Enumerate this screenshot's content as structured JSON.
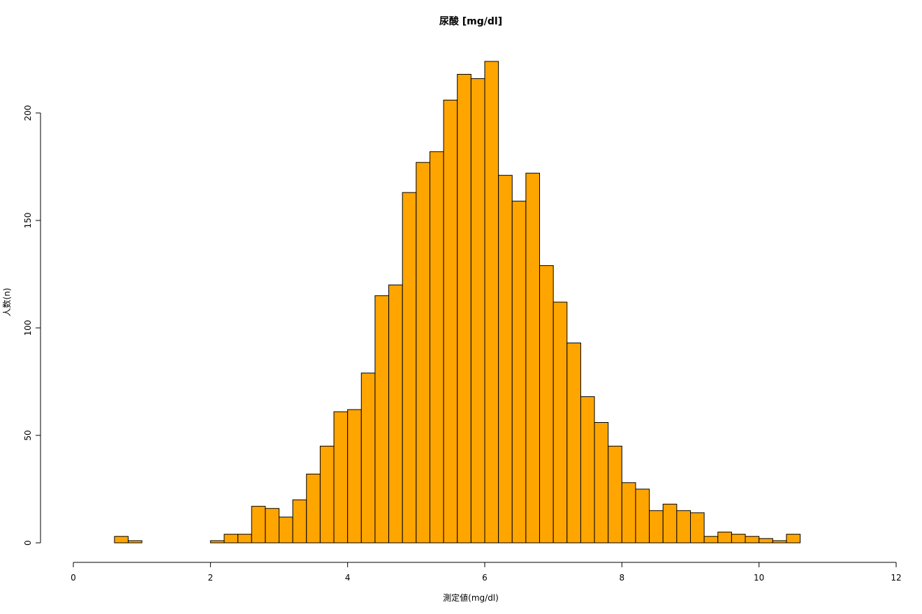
{
  "chart_data": {
    "type": "histogram",
    "title": "尿酸 [mg/dl]",
    "x_label": "測定値(mg/dl)",
    "y_label": "人数(n)",
    "bins": [
      0.6,
      0.8,
      1,
      1.2,
      1.4,
      1.6,
      1.8,
      2,
      2.2,
      2.4,
      2.6,
      2.8,
      3,
      3.2,
      3.4,
      3.6,
      3.8,
      4,
      4.2,
      4.4,
      4.6,
      4.8,
      5,
      5.2,
      5.4,
      5.6,
      5.8,
      6,
      6.2,
      6.4,
      6.6,
      6.8,
      7,
      7.2,
      7.4,
      7.6,
      7.8,
      8,
      8.2,
      8.4,
      8.6,
      8.8,
      9,
      9.2,
      9.4,
      9.6,
      9.8,
      10,
      10.2,
      10.4,
      10.6
    ],
    "values": [
      3,
      1,
      0,
      0,
      0,
      0,
      0,
      1,
      4,
      4,
      17,
      16,
      12,
      20,
      32,
      45,
      61,
      62,
      79,
      115,
      120,
      163,
      177,
      182,
      206,
      218,
      216,
      224,
      171,
      159,
      172,
      129,
      112,
      93,
      68,
      56,
      45,
      28,
      25,
      15,
      18,
      15,
      14,
      3,
      5,
      4,
      3,
      2,
      1,
      4
    ],
    "color": "#ffa500",
    "xlim": [
      0,
      12
    ],
    "xticks": [
      0,
      2,
      4,
      6,
      8,
      10,
      12
    ],
    "ylim": [
      0,
      224
    ],
    "yticks": [
      0,
      50,
      100,
      150,
      200
    ]
  }
}
